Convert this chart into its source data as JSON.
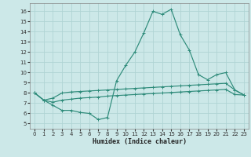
{
  "bg_color": "#cce8e8",
  "grid_color": "#b0d4d4",
  "line_color": "#2e8b7a",
  "xlabel": "Humidex (Indice chaleur)",
  "ylim": [
    4.5,
    16.8
  ],
  "xlim": [
    -0.5,
    23.5
  ],
  "yticks": [
    5,
    6,
    7,
    8,
    9,
    10,
    11,
    12,
    13,
    14,
    15,
    16
  ],
  "xticks": [
    0,
    1,
    2,
    3,
    4,
    5,
    6,
    7,
    8,
    9,
    10,
    11,
    12,
    13,
    14,
    15,
    16,
    17,
    18,
    19,
    20,
    21,
    22,
    23
  ],
  "line1_x": [
    0,
    1,
    2,
    3,
    4,
    5,
    6,
    7,
    8,
    9,
    10,
    11,
    12,
    13,
    14,
    15,
    16,
    17,
    18,
    19,
    20,
    21,
    22,
    23
  ],
  "line1_y": [
    8.0,
    7.3,
    6.8,
    6.3,
    6.3,
    6.1,
    6.0,
    5.4,
    5.6,
    9.2,
    10.7,
    12.0,
    13.9,
    16.0,
    15.7,
    16.2,
    13.7,
    12.2,
    9.8,
    9.3,
    9.8,
    10.0,
    8.3,
    7.8
  ],
  "line2_x": [
    0,
    1,
    2,
    3,
    4,
    5,
    6,
    7,
    8,
    9,
    10,
    11,
    12,
    13,
    14,
    15,
    16,
    17,
    18,
    19,
    20,
    21,
    22,
    23
  ],
  "line2_y": [
    8.0,
    7.3,
    7.5,
    8.0,
    8.1,
    8.15,
    8.2,
    8.25,
    8.3,
    8.35,
    8.4,
    8.45,
    8.5,
    8.55,
    8.6,
    8.65,
    8.7,
    8.75,
    8.8,
    8.85,
    8.9,
    8.95,
    8.3,
    7.8
  ],
  "line3_x": [
    0,
    1,
    2,
    3,
    4,
    5,
    6,
    7,
    8,
    9,
    10,
    11,
    12,
    13,
    14,
    15,
    16,
    17,
    18,
    19,
    20,
    21,
    22,
    23
  ],
  "line3_y": [
    8.0,
    7.3,
    7.1,
    7.3,
    7.4,
    7.5,
    7.55,
    7.6,
    7.7,
    7.75,
    7.8,
    7.85,
    7.9,
    7.95,
    8.0,
    8.05,
    8.1,
    8.15,
    8.2,
    8.25,
    8.3,
    8.35,
    7.85,
    7.8
  ]
}
